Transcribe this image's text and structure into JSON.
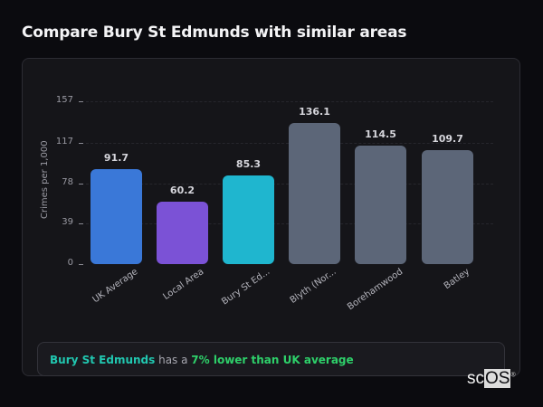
{
  "header": {
    "title": "Compare Bury St Edmunds with similar areas"
  },
  "chart_data": {
    "type": "bar",
    "title": "Compare Bury St Edmunds with similar areas",
    "xlabel": "",
    "ylabel": "Crimes per 1,000",
    "ylim": [
      0,
      157
    ],
    "yticks": [
      0,
      39,
      78,
      117,
      157
    ],
    "grid": true,
    "categories": [
      "UK Average",
      "Local Area",
      "Bury St Ed...",
      "Blyth (Nor...",
      "Borehamwood",
      "Batley"
    ],
    "values": [
      91.7,
      60.2,
      85.3,
      136.1,
      114.5,
      109.7
    ],
    "value_labels": [
      "91.7",
      "60.2",
      "85.3",
      "136.1",
      "114.5",
      "109.7"
    ],
    "colors": [
      "#3a78d8",
      "#7b52d6",
      "#1fb6cf",
      "#5c6678",
      "#5c6678",
      "#5c6678"
    ]
  },
  "summary": {
    "area": "Bury St Edmunds",
    "connector": " has a ",
    "comparison": "7% lower than UK average"
  },
  "logo": {
    "text_a": "sc",
    "text_b": "OS",
    "mark": "®"
  }
}
